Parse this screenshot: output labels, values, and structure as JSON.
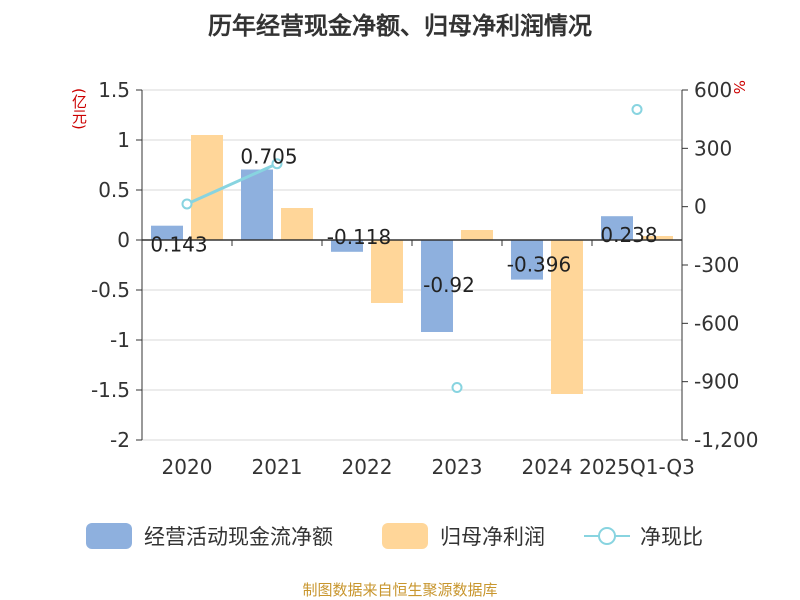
{
  "title": "历年经营现金净额、归母净利润情况",
  "source": "制图数据来自恒生聚源数据库",
  "colors": {
    "cash": "#8eb0de",
    "profit": "#ffd699",
    "ratio": "#88d4e0"
  },
  "chart_data": {
    "type": "bar",
    "title": "历年经营现金净额、归母净利润情况",
    "categories": [
      "2020",
      "2021",
      "2022",
      "2023",
      "2024",
      "2025Q1-Q3"
    ],
    "series": [
      {
        "name": "经营活动现金流净额",
        "type": "bar",
        "axis": "left",
        "values": [
          0.143,
          0.705,
          -0.118,
          -0.92,
          -0.396,
          0.238
        ],
        "labels": [
          "0.143",
          "0.705",
          "-0.118",
          "-0.92",
          "-0.396",
          "0.238"
        ]
      },
      {
        "name": "归母净利润",
        "type": "bar",
        "axis": "left",
        "values": [
          1.05,
          0.32,
          -0.63,
          0.1,
          -1.54,
          0.04
        ]
      },
      {
        "name": "净现比",
        "type": "line",
        "axis": "right",
        "values": [
          14,
          221,
          null,
          -930,
          null,
          500
        ]
      }
    ],
    "y_left": {
      "label": "(亿元)",
      "range": [
        -2,
        1.5
      ],
      "ticks": [
        "1.5",
        "1",
        "0.5",
        "0",
        "-0.5",
        "-1",
        "-1.5",
        "-2"
      ]
    },
    "y_right": {
      "label": "%",
      "range": [
        -1200,
        600
      ],
      "ticks": [
        "600",
        "300",
        "0",
        "-300",
        "-600",
        "-900",
        "-1,200"
      ]
    },
    "grid": true,
    "legend_position": "bottom"
  }
}
